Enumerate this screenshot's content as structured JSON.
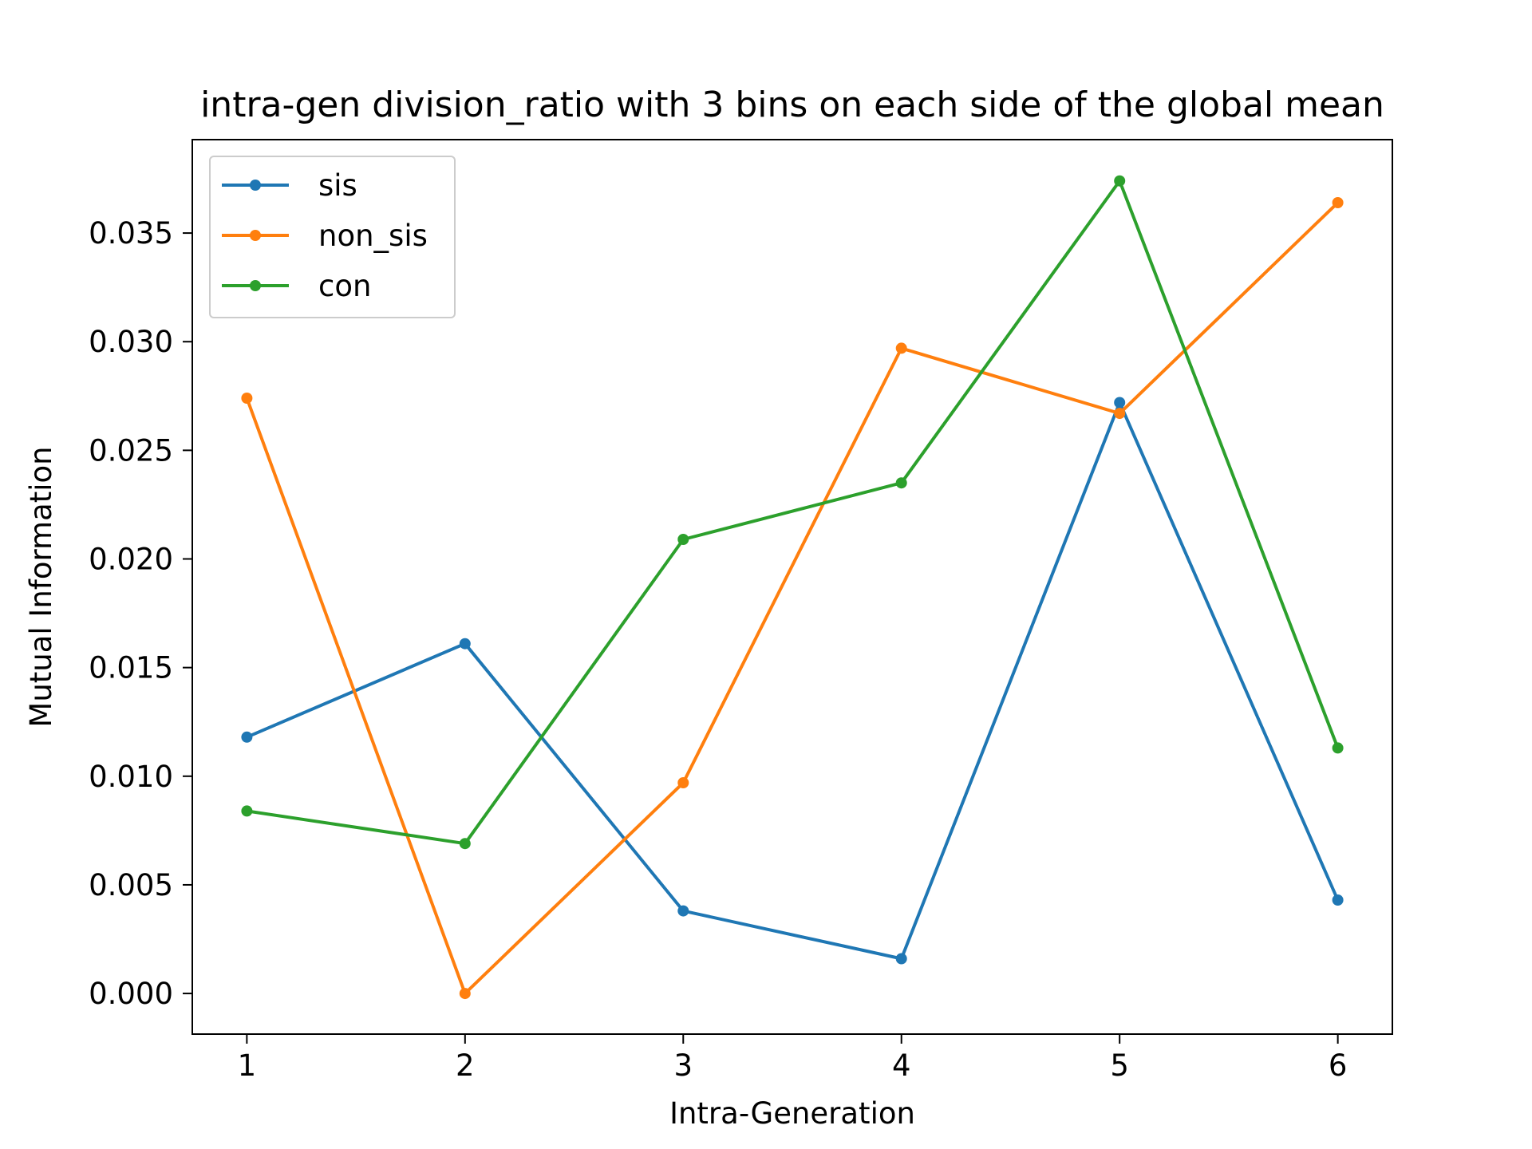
{
  "chart_data": {
    "type": "line",
    "title": "intra-gen division_ratio with 3 bins on each side of the global mean",
    "xlabel": "Intra-Generation",
    "ylabel": "Mutual Information",
    "x": [
      1,
      2,
      3,
      4,
      5,
      6
    ],
    "x_ticks": [
      "1",
      "2",
      "3",
      "4",
      "5",
      "6"
    ],
    "xlim": [
      0.75,
      6.25
    ],
    "y_ticks": [
      "0.000",
      "0.005",
      "0.010",
      "0.015",
      "0.020",
      "0.025",
      "0.030",
      "0.035"
    ],
    "ylim": [
      -0.00187,
      0.0393
    ],
    "grid": false,
    "legend_position": "upper-left",
    "series": [
      {
        "name": "sis",
        "color": "#1f77b4",
        "values": [
          0.0118,
          0.0161,
          0.0038,
          0.0016,
          0.0272,
          0.0043
        ]
      },
      {
        "name": "non_sis",
        "color": "#ff7f0e",
        "values": [
          0.0274,
          0.0,
          0.0097,
          0.0297,
          0.0267,
          0.0364
        ]
      },
      {
        "name": "con",
        "color": "#2ca02c",
        "values": [
          0.0084,
          0.0069,
          0.0209,
          0.0235,
          0.0374,
          0.0113
        ]
      }
    ]
  }
}
